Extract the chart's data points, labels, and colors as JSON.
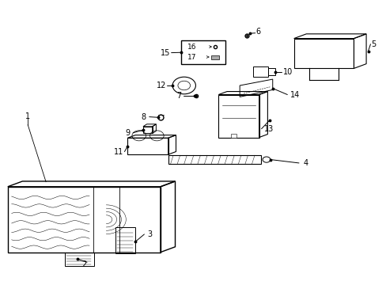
{
  "bg_color": "#ffffff",
  "line_color": "#000000"
}
